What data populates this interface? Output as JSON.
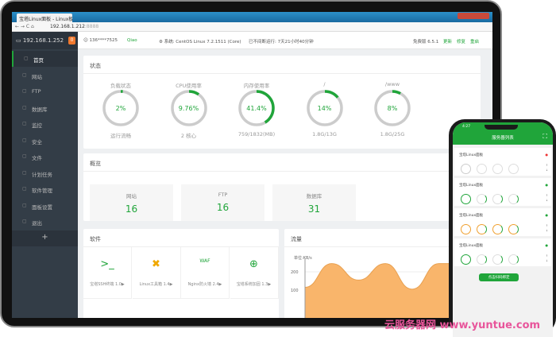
{
  "browser": {
    "tab_title": "宝塔Linux面板 - Linux板",
    "url": "192.168.1.212",
    "url_port": ":8888"
  },
  "header": {
    "server_ip": "192.168.1.252",
    "badge": "0",
    "user": "136****7525",
    "nickname": "Qiao",
    "system_label": "系统:",
    "system": "CentOS Linux 7.2.1511 (Core)",
    "uptime": "已不间断运行: 7天21小时40分钟",
    "version": "免费版 6.5.1",
    "update": "更新",
    "repair": "修复",
    "restart": "重启"
  },
  "sidebar": {
    "items": [
      {
        "label": "首页",
        "icon": "home-icon"
      },
      {
        "label": "网站",
        "icon": "globe-icon"
      },
      {
        "label": "FTP",
        "icon": "ftp-icon"
      },
      {
        "label": "数据库",
        "icon": "database-icon"
      },
      {
        "label": "监控",
        "icon": "monitor-icon"
      },
      {
        "label": "安全",
        "icon": "shield-icon"
      },
      {
        "label": "文件",
        "icon": "folder-icon"
      },
      {
        "label": "计划任务",
        "icon": "calendar-icon"
      },
      {
        "label": "软件管理",
        "icon": "apps-icon"
      },
      {
        "label": "面板设置",
        "icon": "gear-icon"
      },
      {
        "label": "退出",
        "icon": "logout-icon"
      }
    ],
    "add": "+"
  },
  "status": {
    "title": "状态",
    "gauges": [
      {
        "label": "负载状态",
        "value": "2%",
        "percent": 2,
        "sub": "运行流畅"
      },
      {
        "label": "CPU使用率",
        "value": "9.76%",
        "percent": 9.76,
        "sub": "2 核心"
      },
      {
        "label": "内存使用率",
        "value": "41.4%",
        "percent": 41.4,
        "sub": "759/1832(MB)"
      },
      {
        "label": "/",
        "value": "14%",
        "percent": 14,
        "sub": "1.8G/13G"
      },
      {
        "label": "/www",
        "value": "8%",
        "percent": 8,
        "sub": "1.8G/25G"
      }
    ]
  },
  "overview": {
    "title": "概览",
    "items": [
      {
        "label": "网站",
        "value": "16"
      },
      {
        "label": "FTP",
        "value": "16"
      },
      {
        "label": "数据库",
        "value": "31"
      }
    ]
  },
  "software": {
    "title": "软件",
    "items": [
      {
        "name": "宝塔SSH终端 1.0▶",
        "icon": "terminal-icon"
      },
      {
        "name": "Linux工具箱 1.4▶",
        "icon": "tools-icon"
      },
      {
        "name": "Nginx防火墙 2.4▶",
        "icon": "waf-icon"
      },
      {
        "name": "宝塔系统加固 1.3▶",
        "icon": "shield-plus-icon"
      }
    ]
  },
  "traffic": {
    "title": "流量"
  },
  "chart_data": {
    "type": "area",
    "ylabel": "单位:KB/s",
    "ylim": [
      0,
      300
    ],
    "yticks": [
      "300",
      "200",
      "100"
    ],
    "series": [
      {
        "values": [
          115,
          245,
          155,
          245,
          105,
          245,
          245,
          245
        ],
        "color": "#f9b56b"
      }
    ]
  },
  "phone": {
    "time": "4:27",
    "title": "服务器列表",
    "cards": [
      {
        "name": "宝塔Linux面板",
        "color": "#ccc"
      },
      {
        "name": "宝塔Linux面板",
        "color": "#20a53a"
      },
      {
        "name": "宝塔Linux面板",
        "color": "#f0a030"
      },
      {
        "name": "宝塔Linux面板",
        "color": "#20a53a"
      }
    ],
    "bind_button": "点击扫码绑定"
  },
  "watermark": "云服务器网 www.yuntue.com",
  "colors": {
    "accent": "#20a53a",
    "sidebar": "#333d47"
  }
}
